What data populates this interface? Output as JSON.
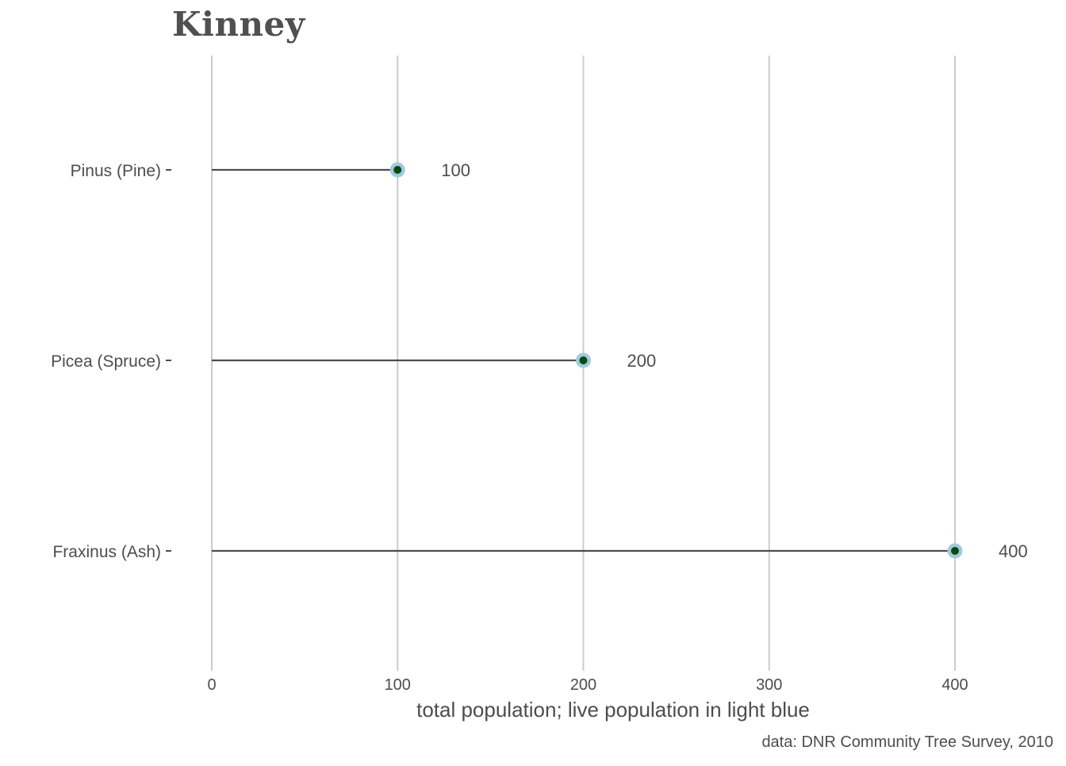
{
  "chart_data": {
    "type": "lollipop",
    "title": "Kinney",
    "xlabel": "total population; live population in light blue",
    "caption": "data: DNR Community Tree Survey, 2010",
    "xlim": [
      0,
      400
    ],
    "x_ticks": [
      0,
      100,
      200,
      300,
      400
    ],
    "categories": [
      "Pinus (Pine)",
      "Picea (Spruce)",
      "Fraxinus (Ash)"
    ],
    "series": [
      {
        "values": [
          100,
          200,
          400
        ]
      },
      {
        "values": [
          100,
          200,
          400
        ]
      }
    ],
    "value_labels": [
      "100",
      "200",
      "400"
    ],
    "grid": "vertical",
    "colors": {
      "stem": "#4d4d4d",
      "live_point": "#9ecae1",
      "total_point": "#0b4a0b",
      "grid": "#cccccc",
      "text": "#4d4d4d"
    }
  }
}
